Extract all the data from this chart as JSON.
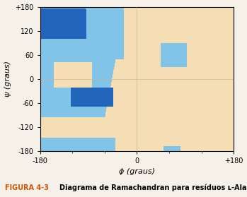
{
  "title": "",
  "xlabel": "ϕ (graus)",
  "ylabel": "ψ (graus)",
  "xlim": [
    -180,
    180
  ],
  "ylim": [
    -180,
    180
  ],
  "xticks": [
    -180,
    0,
    180
  ],
  "xtick_labels": [
    "-180",
    "0",
    "+180"
  ],
  "yticks": [
    -180,
    -120,
    -60,
    0,
    60,
    120,
    180
  ],
  "ytick_labels": [
    "-180",
    "-120",
    "-60",
    "0",
    "60",
    "120",
    "+180"
  ],
  "bg_color": "#f5deb3",
  "light_blue": "#82c4e8",
  "dark_blue": "#2266bb",
  "fig_bg": "#f5f0e8",
  "figure_caption": "FIGURA 4-3",
  "caption_text": "Diagrama de Ramachandran para resíduos ʟ-Ala.",
  "grid_color": "#c8b89a",
  "caption_color": "#cc5500"
}
